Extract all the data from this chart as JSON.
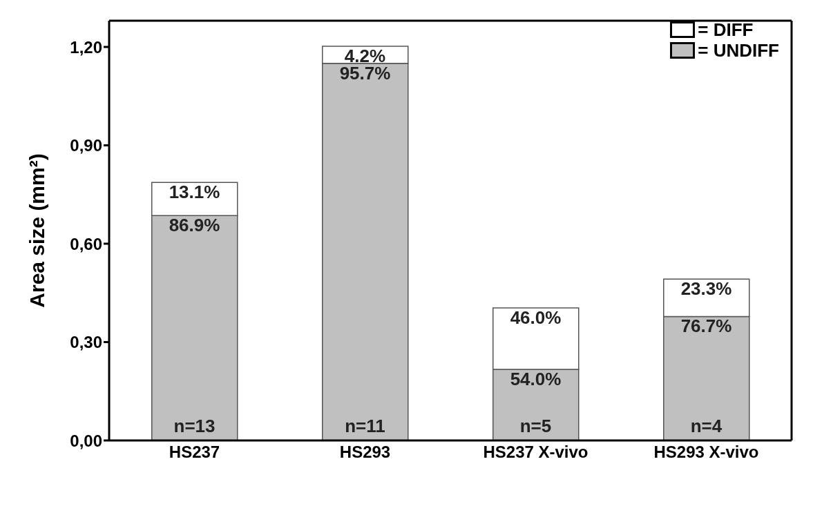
{
  "chart_data": {
    "type": "bar",
    "stacked": true,
    "ylabel": "Area size (mm²)",
    "categories": [
      "HS237",
      "HS293",
      "HS237 X-vivo",
      "HS293 X-vivo"
    ],
    "series": [
      {
        "name": "= UNDIFF",
        "color": "#c0c0c0",
        "values": [
          0.686,
          1.15,
          0.217,
          0.378
        ]
      },
      {
        "name": "= DIFF",
        "color": "#ffffff",
        "values": [
          0.101,
          0.052,
          0.187,
          0.114
        ]
      }
    ],
    "ylim": [
      0,
      1.28
    ],
    "yticks": [
      {
        "value": 0,
        "label": "0,00"
      },
      {
        "value": 0.3,
        "label": "0,30"
      },
      {
        "value": 0.6,
        "label": "0,60"
      },
      {
        "value": 0.9,
        "label": "0,90"
      },
      {
        "value": 1.2,
        "label": "1,20"
      }
    ],
    "annotations": [
      {
        "text": "86.9%",
        "x": "HS237",
        "y": 0.686
      },
      {
        "text": "95.7%",
        "x": "HS293",
        "y": 1.15
      },
      {
        "text": "54.0%",
        "x": "HS237 X-vivo",
        "y": 0.217
      },
      {
        "text": "76.7%",
        "x": "HS293 X-vivo",
        "y": 0.378
      },
      {
        "text": "13.1%",
        "x": "HS237",
        "y": 0.787
      },
      {
        "text": "4.2%",
        "x": "HS293",
        "y": 1.202
      },
      {
        "text": "46.0%",
        "x": "HS237 X-vivo",
        "y": 0.404
      },
      {
        "text": "23.3%",
        "x": "HS293 X-vivo",
        "y": 0.492
      },
      "n=13",
      "n=11",
      "n=5",
      "n=4"
    ],
    "legend": "top right",
    "grid": false
  }
}
